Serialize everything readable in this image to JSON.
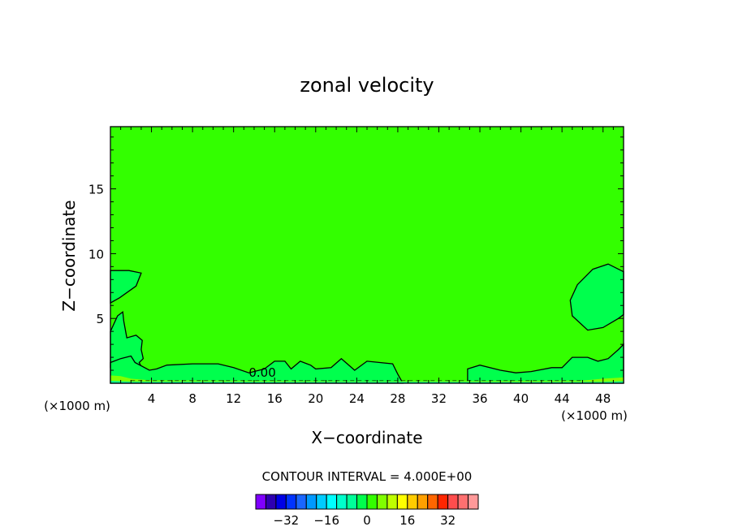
{
  "chart_data": {
    "type": "contour",
    "title": "zonal velocity",
    "xlabel": "X−coordinate",
    "ylabel": "Z−coordinate",
    "x_unit": "(×1000 m)",
    "z_unit": "(×1000 m)",
    "xlim": [
      0,
      50
    ],
    "ylim": [
      0,
      19.8
    ],
    "x_ticks": [
      4,
      8,
      12,
      16,
      20,
      24,
      28,
      32,
      36,
      40,
      44,
      48
    ],
    "y_ticks": [
      5,
      10,
      15
    ],
    "contour_label": "0.00",
    "background_value_color": "#33ff00",
    "contour_interval_text": "CONTOUR INTERVAL = 4.000E+00",
    "colorbar": {
      "colors": [
        "#7f00ff",
        "#2e00b2",
        "#0000e6",
        "#0033ff",
        "#1a66ff",
        "#0099ff",
        "#00ccff",
        "#00ffff",
        "#00ffcc",
        "#00ff99",
        "#00ff4d",
        "#33ff00",
        "#80ff00",
        "#bfff00",
        "#ffff00",
        "#ffcc00",
        "#ffa000",
        "#ff6600",
        "#ff2600",
        "#ff4d4d",
        "#ff7070",
        "#ff9999"
      ],
      "tick_labels": [
        "−32",
        "−16",
        "0",
        "16",
        "32"
      ]
    },
    "regions": [
      {
        "name": "left-mid-lobe",
        "value_color": "#00ff4d",
        "polygon": [
          [
            0,
            8.7
          ],
          [
            1.8,
            8.7
          ],
          [
            3,
            8.5
          ],
          [
            2.5,
            7.5
          ],
          [
            0.9,
            6.6
          ],
          [
            0,
            6.2
          ]
        ]
      },
      {
        "name": "left-lower-lobe",
        "value_color": "#00ff4d",
        "polygon": [
          [
            0,
            4
          ],
          [
            0.7,
            5.2
          ],
          [
            1.2,
            5.5
          ],
          [
            1.3,
            4.8
          ],
          [
            1.6,
            3.5
          ],
          [
            2.5,
            3.7
          ],
          [
            3.1,
            3.3
          ],
          [
            3,
            2.6
          ],
          [
            3.2,
            1.9
          ],
          [
            2.8,
            1.6
          ],
          [
            3.2,
            1
          ],
          [
            0,
            1.2
          ]
        ]
      },
      {
        "name": "bottom-strip",
        "value_color": "#00ff4d",
        "polygon": [
          [
            0,
            1.6
          ],
          [
            1,
            1.9
          ],
          [
            2,
            2.1
          ],
          [
            2.4,
            1.6
          ],
          [
            3.8,
            1
          ],
          [
            4.5,
            1.1
          ],
          [
            5.5,
            1.4
          ],
          [
            8,
            1.5
          ],
          [
            10.5,
            1.5
          ],
          [
            12,
            1.2
          ],
          [
            13.5,
            0.8
          ],
          [
            15,
            1.1
          ],
          [
            16,
            1.7
          ],
          [
            17,
            1.7
          ],
          [
            17.6,
            1.1
          ],
          [
            18.5,
            1.7
          ],
          [
            19.5,
            1.4
          ],
          [
            20,
            1.1
          ],
          [
            21.5,
            1.2
          ],
          [
            22.5,
            1.9
          ],
          [
            23.8,
            1
          ],
          [
            25,
            1.7
          ],
          [
            27.5,
            1.5
          ],
          [
            28,
            0.7
          ],
          [
            28.5,
            0
          ],
          [
            0,
            0
          ]
        ]
      },
      {
        "name": "bottom-right-strip",
        "value_color": "#00ff4d",
        "polygon": [
          [
            34.8,
            0
          ],
          [
            34.8,
            1.1
          ],
          [
            36,
            1.4
          ],
          [
            38,
            1
          ],
          [
            39.5,
            0.8
          ],
          [
            41,
            0.9
          ],
          [
            43,
            1.2
          ],
          [
            44,
            1.2
          ],
          [
            45,
            2
          ],
          [
            46.5,
            2
          ],
          [
            47.5,
            1.7
          ],
          [
            48.5,
            1.9
          ],
          [
            49.5,
            2.6
          ],
          [
            50,
            3
          ],
          [
            50,
            0
          ]
        ]
      },
      {
        "name": "right-lobe",
        "value_color": "#00ff4d",
        "polygon": [
          [
            50,
            8.6
          ],
          [
            48.5,
            9.2
          ],
          [
            47,
            8.8
          ],
          [
            45.5,
            7.6
          ],
          [
            44.8,
            6.4
          ],
          [
            45,
            5.2
          ],
          [
            46.5,
            4.1
          ],
          [
            48,
            4.3
          ],
          [
            49.5,
            5
          ],
          [
            50,
            5.3
          ]
        ]
      },
      {
        "name": "bottom-warm-layer",
        "value_color": "#80ff00",
        "polygon": [
          [
            0,
            0.6
          ],
          [
            1,
            0.55
          ],
          [
            2,
            0.35
          ],
          [
            4,
            0.22
          ],
          [
            25,
            0.15
          ],
          [
            46,
            0.2
          ],
          [
            48,
            0.35
          ],
          [
            50,
            0.45
          ],
          [
            50,
            0
          ],
          [
            0,
            0
          ]
        ]
      },
      {
        "name": "bottom-cool-layer",
        "value_color": "#00ff99",
        "polygon": [
          [
            0,
            0
          ],
          [
            0,
            0.18
          ],
          [
            2,
            0.12
          ],
          [
            48,
            0.1
          ],
          [
            50,
            0.15
          ],
          [
            50,
            0
          ]
        ]
      }
    ]
  }
}
